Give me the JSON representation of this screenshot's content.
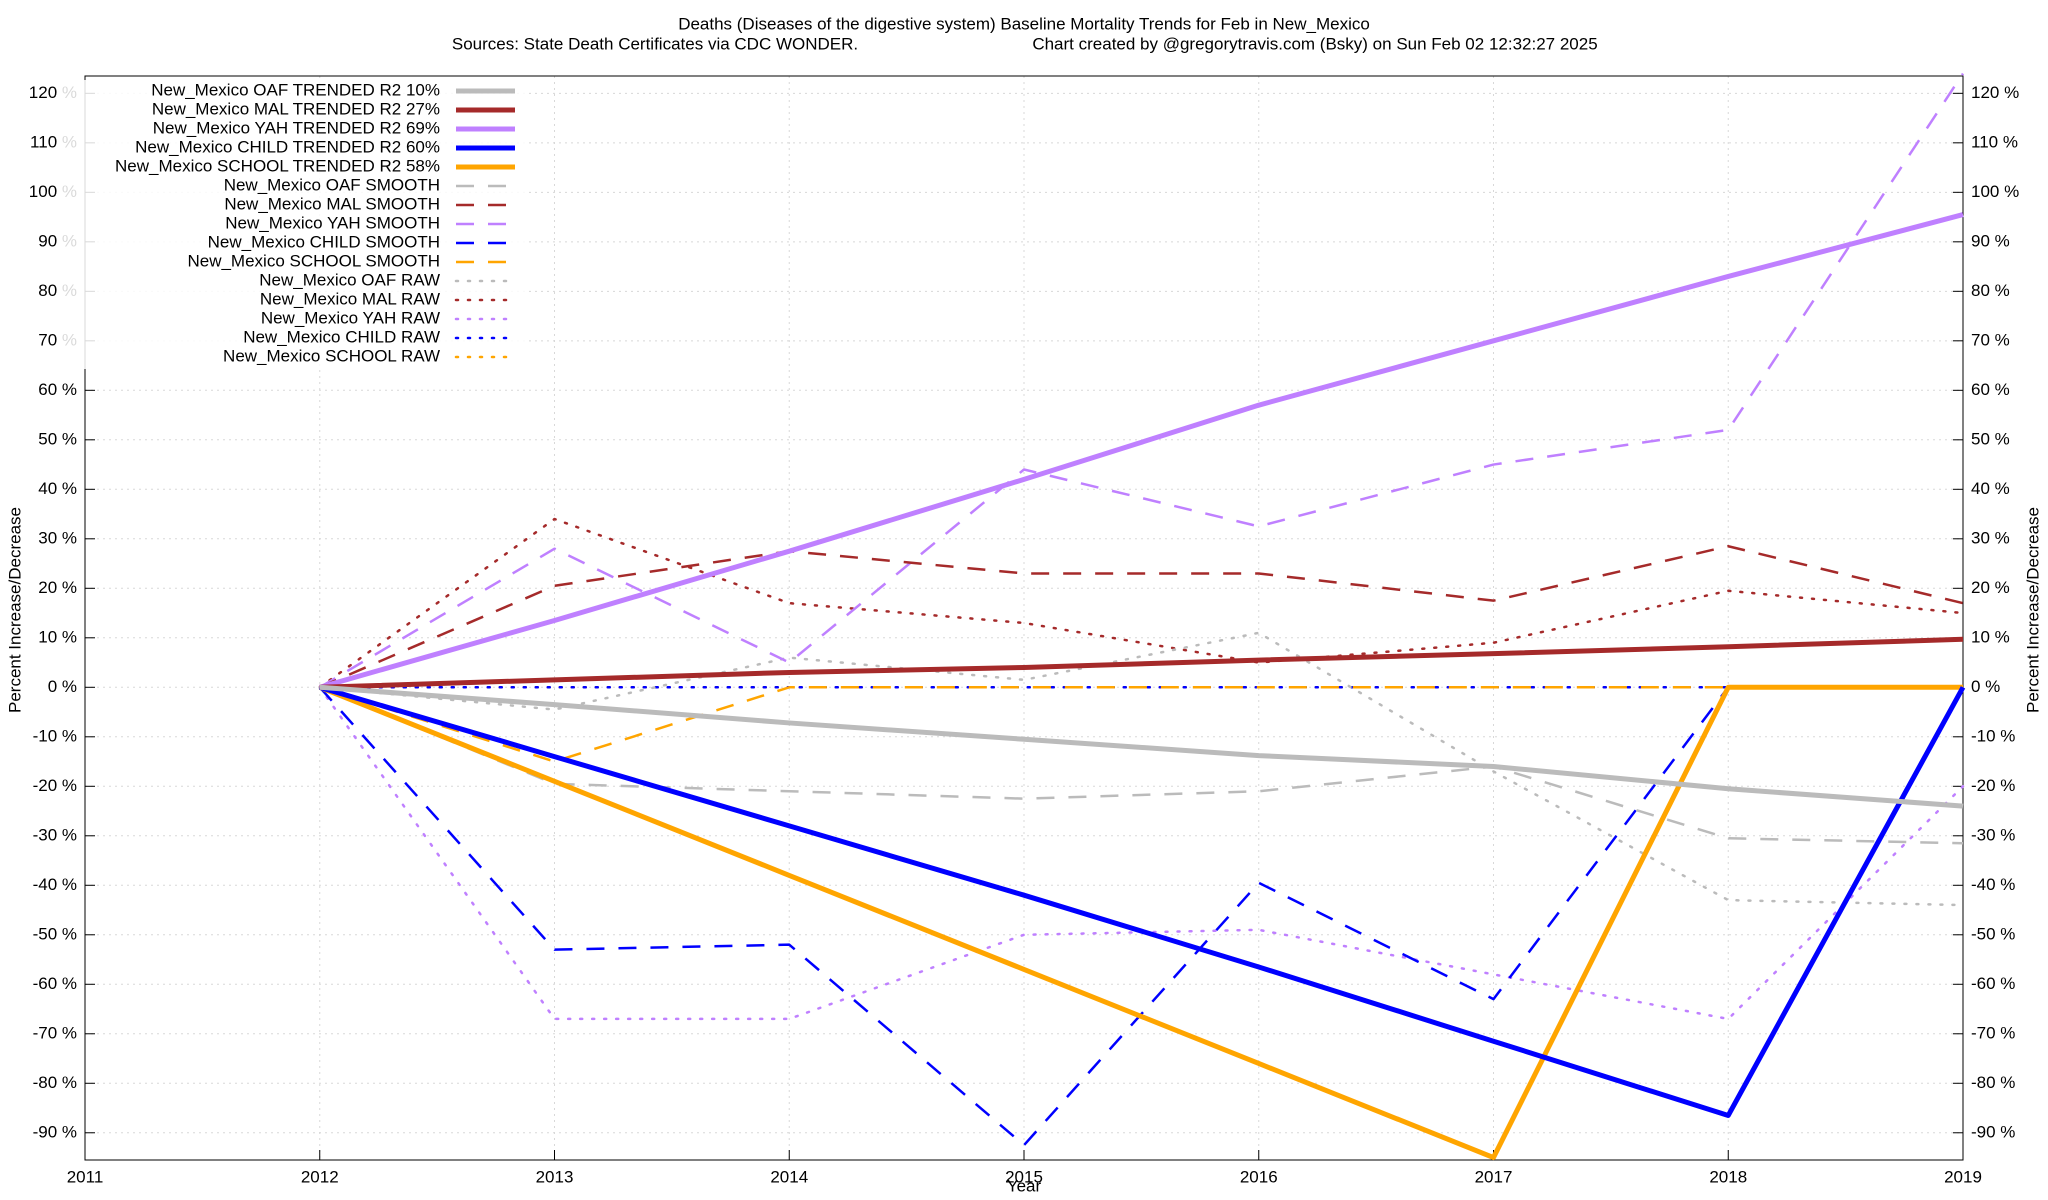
{
  "chart_data": {
    "type": "line",
    "title": "Deaths (Diseases of the digestive system)  Baseline Mortality Trends for Feb in New_Mexico",
    "subtitle": "Sources: State Death Certificates via CDC WONDER.",
    "credit": "Chart created by @gregorytravis.com (Bsky) on Sun Feb 02 12:32:27 2025",
    "xlabel": "Year",
    "ylabel": "Percent Increase/Decrease",
    "x": [
      2012,
      2013,
      2014,
      2015,
      2016,
      2017,
      2018,
      2019
    ],
    "xlim": [
      2011,
      2019
    ],
    "xticks": [
      2011,
      2012,
      2013,
      2014,
      2015,
      2016,
      2017,
      2018,
      2019
    ],
    "ylim": [
      -95.5,
      123.5
    ],
    "yticks": [
      {
        "value": -90,
        "label": "-90 %"
      },
      {
        "value": -80,
        "label": "-80 %"
      },
      {
        "value": -70,
        "label": "-70 %"
      },
      {
        "value": -60,
        "label": "-60 %"
      },
      {
        "value": -50,
        "label": "-50 %"
      },
      {
        "value": -40,
        "label": "-40 %"
      },
      {
        "value": -30,
        "label": "-30 %"
      },
      {
        "value": -20,
        "label": "-20 %"
      },
      {
        "value": -10,
        "label": "-10 %"
      },
      {
        "value": 0,
        "label": "0 %"
      },
      {
        "value": 10,
        "label": "10 %"
      },
      {
        "value": 20,
        "label": "20 %"
      },
      {
        "value": 30,
        "label": "30 %"
      },
      {
        "value": 40,
        "label": "40 %"
      },
      {
        "value": 50,
        "label": "50 %"
      },
      {
        "value": 60,
        "label": "60 %"
      },
      {
        "value": 70,
        "label": "70 %"
      },
      {
        "value": 80,
        "label": "80 %"
      },
      {
        "value": 90,
        "label": "90 %"
      },
      {
        "value": 100,
        "label": "100 %"
      },
      {
        "value": 110,
        "label": "110 %"
      },
      {
        "value": 120,
        "label": "120 %"
      }
    ],
    "grid": true,
    "legend": "top-left",
    "series": [
      {
        "name": "New_Mexico OAF TRENDED R2  10%",
        "color": "#bbbbbb",
        "style": "solid",
        "values": [
          0,
          -3.5,
          -7.2,
          -10.5,
          -13.8,
          -16,
          -20.5,
          -24
        ]
      },
      {
        "name": "New_Mexico MAL TRENDED R2  27%",
        "color": "#a52a2a",
        "style": "solid",
        "values": [
          0,
          1.5,
          3,
          4,
          5.5,
          6.8,
          8.2,
          9.7
        ]
      },
      {
        "name": "New_Mexico YAH TRENDED R2  69%",
        "color": "#bf80ff",
        "style": "solid",
        "values": [
          0,
          13.5,
          27.5,
          42,
          57,
          70,
          83,
          95.5
        ]
      },
      {
        "name": "New_Mexico CHILD TRENDED R2  60%",
        "color": "#0000ff",
        "style": "solid",
        "values": [
          0,
          -14,
          -28,
          -42,
          -56.5,
          -71.5,
          -86.5,
          0
        ]
      },
      {
        "name": "New_Mexico SCHOOL TRENDED R2  58%",
        "color": "#ffa500",
        "style": "solid",
        "values": [
          0,
          -19,
          -38,
          -57,
          -76,
          -95,
          0,
          0
        ]
      },
      {
        "name": "New_Mexico OAF SMOOTH",
        "color": "#bbbbbb",
        "style": "dash",
        "values": [
          0,
          -19.5,
          -21,
          -22.5,
          -21,
          -16,
          -30.5,
          -31.5
        ]
      },
      {
        "name": "New_Mexico MAL SMOOTH",
        "color": "#a52a2a",
        "style": "dash",
        "values": [
          0,
          20.5,
          27.5,
          23,
          23,
          17.5,
          28.5,
          17
        ]
      },
      {
        "name": "New_Mexico YAH SMOOTH",
        "color": "#bf80ff",
        "style": "dash",
        "values": [
          0,
          28,
          5,
          44,
          32.5,
          45,
          52,
          124
        ]
      },
      {
        "name": "New_Mexico CHILD SMOOTH",
        "color": "#0000ff",
        "style": "dash",
        "values": [
          0,
          -53,
          -52,
          -92.5,
          -39.5,
          -63,
          0,
          0
        ]
      },
      {
        "name": "New_Mexico SCHOOL SMOOTH",
        "color": "#ffa500",
        "style": "dash",
        "values": [
          0,
          -15,
          0,
          0,
          0,
          0,
          0,
          0
        ]
      },
      {
        "name": "New_Mexico OAF RAW",
        "color": "#bbbbbb",
        "style": "dot",
        "values": [
          0,
          -4.5,
          6,
          1.5,
          11,
          -17,
          -43,
          -44
        ]
      },
      {
        "name": "New_Mexico MAL RAW",
        "color": "#a52a2a",
        "style": "dot",
        "values": [
          0,
          34,
          17,
          13,
          5,
          9,
          19.5,
          15
        ]
      },
      {
        "name": "New_Mexico YAH RAW",
        "color": "#bf80ff",
        "style": "dot",
        "values": [
          0,
          -67,
          -67,
          -50,
          -49,
          -58,
          -67,
          -20
        ]
      },
      {
        "name": "New_Mexico CHILD RAW",
        "color": "#0000ff",
        "style": "dot",
        "values": [
          0,
          0,
          0,
          0,
          0,
          0,
          0,
          0
        ]
      },
      {
        "name": "New_Mexico SCHOOL RAW",
        "color": "#ffa500",
        "style": "dot",
        "values": [
          0,
          0,
          0,
          0,
          0,
          0,
          0,
          0
        ]
      }
    ]
  }
}
